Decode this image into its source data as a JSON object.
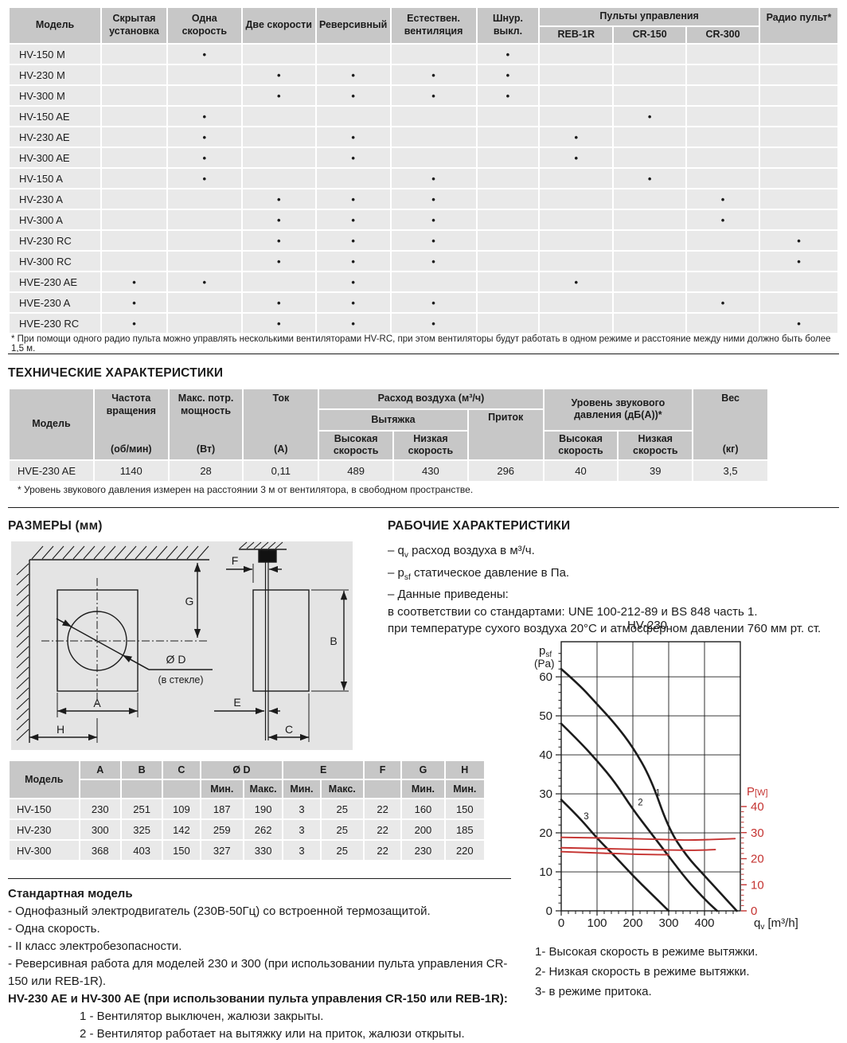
{
  "features_table": {
    "headers": {
      "model": "Модель",
      "cols": [
        "Скрытая установка",
        "Одна скорость",
        "Две скорости",
        "Реверсивный",
        "Естествен. вентиляция",
        "Шнур. выкл."
      ],
      "remotes_group": "Пульты управления",
      "remotes": [
        "REB-1R",
        "CR-150",
        "CR-300"
      ],
      "radio": "Радио пульт*"
    },
    "dot": "•",
    "rows": [
      {
        "model": "HV-150 M",
        "flags": [
          0,
          1,
          0,
          0,
          0,
          1,
          0,
          0,
          0,
          0
        ]
      },
      {
        "model": "HV-230 M",
        "flags": [
          0,
          0,
          1,
          1,
          1,
          1,
          0,
          0,
          0,
          0
        ]
      },
      {
        "model": "HV-300 M",
        "flags": [
          0,
          0,
          1,
          1,
          1,
          1,
          0,
          0,
          0,
          0
        ]
      },
      {
        "model": "HV-150 AE",
        "flags": [
          0,
          1,
          0,
          0,
          0,
          0,
          0,
          1,
          0,
          0
        ]
      },
      {
        "model": "HV-230 AE",
        "flags": [
          0,
          1,
          0,
          1,
          0,
          0,
          1,
          0,
          0,
          0
        ]
      },
      {
        "model": "HV-300 AE",
        "flags": [
          0,
          1,
          0,
          1,
          0,
          0,
          1,
          0,
          0,
          0
        ]
      },
      {
        "model": "HV-150 A",
        "flags": [
          0,
          1,
          0,
          0,
          1,
          0,
          0,
          1,
          0,
          0
        ]
      },
      {
        "model": "HV-230 A",
        "flags": [
          0,
          0,
          1,
          1,
          1,
          0,
          0,
          0,
          1,
          0
        ]
      },
      {
        "model": "HV-300 A",
        "flags": [
          0,
          0,
          1,
          1,
          1,
          0,
          0,
          0,
          1,
          0
        ]
      },
      {
        "model": "HV-230 RC",
        "flags": [
          0,
          0,
          1,
          1,
          1,
          0,
          0,
          0,
          0,
          1
        ]
      },
      {
        "model": "HV-300 RC",
        "flags": [
          0,
          0,
          1,
          1,
          1,
          0,
          0,
          0,
          0,
          1
        ]
      },
      {
        "model": "HVE-230 AE",
        "flags": [
          1,
          1,
          0,
          1,
          0,
          0,
          1,
          0,
          0,
          0
        ]
      },
      {
        "model": "HVE-230 A",
        "flags": [
          1,
          0,
          1,
          1,
          1,
          0,
          0,
          0,
          1,
          0
        ]
      },
      {
        "model": "HVE-230 RC",
        "flags": [
          1,
          0,
          1,
          1,
          1,
          0,
          0,
          0,
          0,
          1
        ]
      }
    ],
    "footnote": "* При помощи одного радио пульта можно управлять несколькими вентиляторами HV-RC, при этом вентиляторы будут работать в одном режиме и расстояние между ними должно быть более 1,5 м."
  },
  "tech": {
    "title": "ТЕХНИЧЕСКИЕ ХАРАКТЕРИСТИКИ",
    "headers": {
      "model": "Модель",
      "speed_name": "Частота вращения",
      "speed_unit": "(об/мин)",
      "power_name": "Макс. потр. мощность",
      "power_unit": "(Вт)",
      "current_name": "Ток",
      "current_unit": "(А)",
      "airflow_group": "Расход воздуха (м³/ч)",
      "exhaust": "Вытяжка",
      "supply": "Приток",
      "high_speed": "Высокая скорость",
      "low_speed": "Низкая скорость",
      "noise_group": "Уровень звукового давления (дБ(А))*",
      "noise_high": "Высокая скорость",
      "noise_low": "Низкая скорость",
      "weight_name": "Вес",
      "weight_unit": "(кг)"
    },
    "row": {
      "model": "HVE-230 AE",
      "values": [
        "1140",
        "28",
        "0,11",
        "489",
        "430",
        "296",
        "40",
        "39",
        "3,5"
      ]
    },
    "footnote": "* Уровень звукового давления измерен на расстоянии 3 м от вентилятора, в свободном пространстве."
  },
  "dimensions": {
    "title": "РАЗМЕРЫ (мм)",
    "diagram_labels": {
      "g": "G",
      "diameter": "Ø D",
      "glass_note": "(в стекле)",
      "a": "A",
      "h": "H",
      "f": "F",
      "b": "B",
      "e": "E",
      "c": "C"
    },
    "table": {
      "model_header": "Модель",
      "col_headers": [
        "A",
        "B",
        "C",
        "Ø D",
        "E",
        "F",
        "G",
        "H"
      ],
      "min_label": "Мин.",
      "max_label": "Макс.",
      "rows": [
        {
          "model": "HV-150",
          "values": [
            "230",
            "251",
            "109",
            "187",
            "190",
            "3",
            "25",
            "22",
            "160",
            "150"
          ]
        },
        {
          "model": "HV-230",
          "values": [
            "300",
            "325",
            "142",
            "259",
            "262",
            "3",
            "25",
            "22",
            "200",
            "185"
          ]
        },
        {
          "model": "HV-300",
          "values": [
            "368",
            "403",
            "150",
            "327",
            "330",
            "3",
            "25",
            "22",
            "230",
            "220"
          ]
        }
      ]
    }
  },
  "performance": {
    "title": "РАБОЧИЕ ХАРАКТЕРИСТИКИ",
    "notes": [
      [
        {
          "t": "– q"
        },
        {
          "s": "v"
        },
        {
          "t": " расход воздуха в м³/ч."
        }
      ],
      [
        {
          "t": "– p"
        },
        {
          "s": "sf"
        },
        {
          "t": " статическое давление в Па."
        }
      ],
      [
        {
          "t": "– Данные приведены:"
        }
      ],
      [
        {
          "t": "в соответствии со стандартами: UNE 100-212-89 и BS 848 часть 1."
        }
      ],
      [
        {
          "t": "при температуре сухого воздуха 20°С и атмосферном давлении 760 мм рт. ст."
        }
      ]
    ]
  },
  "chart_data": {
    "type": "line",
    "title": "HV-230",
    "xlabel": "q_v [m³/h]",
    "ylabel_left": "p_sf (Pa)",
    "ylabel_right": "P[W]",
    "x_ticks": [
      0,
      100,
      200,
      300,
      400
    ],
    "x_max": 500,
    "y_left_ticks": [
      0,
      10,
      20,
      30,
      40,
      50,
      60
    ],
    "y_left_max": 69,
    "y_right_ticks": [
      0,
      10,
      20,
      30,
      40
    ],
    "accent_red": "#c53331",
    "series": [
      {
        "name": "1",
        "axis": "left",
        "color": "#1c1c1c",
        "points": [
          [
            0,
            62
          ],
          [
            50,
            58
          ],
          [
            100,
            53
          ],
          [
            150,
            48
          ],
          [
            200,
            42
          ],
          [
            250,
            34
          ],
          [
            300,
            21
          ],
          [
            350,
            14
          ],
          [
            400,
            9
          ],
          [
            450,
            4
          ],
          [
            490,
            0
          ]
        ]
      },
      {
        "name": "2",
        "axis": "left",
        "color": "#1c1c1c",
        "points": [
          [
            0,
            48
          ],
          [
            50,
            43.5
          ],
          [
            100,
            38.5
          ],
          [
            150,
            33
          ],
          [
            200,
            26
          ],
          [
            250,
            20
          ],
          [
            300,
            14
          ],
          [
            350,
            8
          ],
          [
            400,
            3
          ],
          [
            435,
            0
          ]
        ]
      },
      {
        "name": "3",
        "axis": "left",
        "color": "#1c1c1c",
        "points": [
          [
            0,
            28.5
          ],
          [
            50,
            24
          ],
          [
            100,
            18.6
          ],
          [
            150,
            14
          ],
          [
            200,
            9
          ],
          [
            250,
            4.5
          ],
          [
            300,
            0
          ]
        ]
      },
      {
        "name": "P1",
        "axis": "right",
        "color": "#c53331",
        "points": [
          [
            0,
            28.2
          ],
          [
            100,
            28
          ],
          [
            200,
            27.7
          ],
          [
            300,
            27.3
          ],
          [
            360,
            27.1
          ],
          [
            430,
            27.4
          ],
          [
            485,
            27.7
          ]
        ]
      },
      {
        "name": "P2",
        "axis": "right",
        "color": "#c53331",
        "points": [
          [
            0,
            24.2
          ],
          [
            100,
            23.9
          ],
          [
            200,
            23.6
          ],
          [
            300,
            23.3
          ],
          [
            380,
            23.2
          ],
          [
            430,
            23.5
          ]
        ]
      },
      {
        "name": "P3",
        "axis": "right",
        "color": "#c53331",
        "points": [
          [
            0,
            22.7
          ],
          [
            80,
            22.3
          ],
          [
            160,
            21.9
          ],
          [
            240,
            21.6
          ],
          [
            300,
            21.5
          ]
        ]
      }
    ],
    "curve_labels": [
      {
        "text": "1",
        "q": 270,
        "pa": 29.5
      },
      {
        "text": "2",
        "q": 221,
        "pa": 27
      },
      {
        "text": "3",
        "q": 70,
        "pa": 23.5
      }
    ],
    "legend": [
      "1- Высокая скорость в режиме вытяжки.",
      "2- Низкая скорость в режиме вытяжки.",
      "3- в режиме притока."
    ]
  },
  "standard_model": {
    "title": "Стандартная модель",
    "items": [
      "- Однофазный электродвигатель (230В-50Гц) со встроенной термозащитой.",
      "- Одна скорость.",
      "- II класс электробезопасности.",
      "- Реверсивная работа для моделей 230 и 300 (при использовании пульта управления CR-150 или REB-1R)."
    ],
    "subtitle": "HV-230 AE и HV-300 AE (при использовании пульта управления CR-150 или REB-1R):",
    "numbered": [
      "1 - Вентилятор выключен, жалюзи закрыты.",
      "2 - Вентилятор работает на вытяжку или на приток, жалюзи открыты."
    ]
  }
}
